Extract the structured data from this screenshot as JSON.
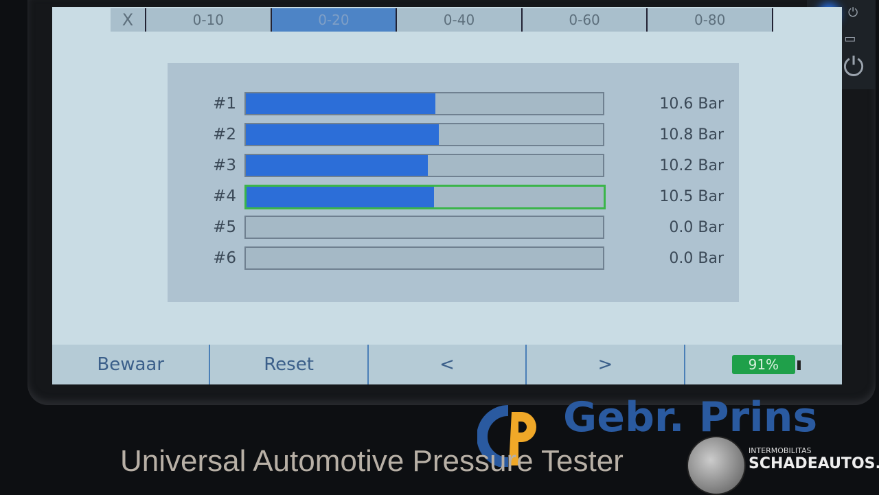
{
  "tabs": [
    {
      "label": "X"
    },
    {
      "label": "0-10"
    },
    {
      "label": "0-20",
      "active": true
    },
    {
      "label": "0-40"
    },
    {
      "label": "0-60"
    },
    {
      "label": "0-80"
    }
  ],
  "range_max": 20,
  "channels": [
    {
      "label": "#1",
      "value": 10.6,
      "display": "10.6 Bar"
    },
    {
      "label": "#2",
      "value": 10.8,
      "display": "10.8 Bar"
    },
    {
      "label": "#3",
      "value": 10.2,
      "display": "10.2 Bar"
    },
    {
      "label": "#4",
      "value": 10.5,
      "display": "10.5 Bar",
      "selected": true
    },
    {
      "label": "#5",
      "value": 0.0,
      "display": "0.0 Bar"
    },
    {
      "label": "#6",
      "value": 0.0,
      "display": "0.0 Bar"
    }
  ],
  "bottom": {
    "save": "Bewaar",
    "reset": "Reset",
    "prev": "<",
    "next": ">",
    "battery": "91%"
  },
  "device": {
    "title": "Universal Automotive Pressure Tester",
    "brand": "Gebr. Prins"
  },
  "watermark": {
    "line1": "INTERMOBILITAS",
    "line2": "SCHADEAUTOS.NL"
  },
  "colors": {
    "bar_fill": "#2c6ed8",
    "selected_border": "#3bb54a",
    "battery": "#1fa04a",
    "active_tab": "#4d84c6"
  }
}
